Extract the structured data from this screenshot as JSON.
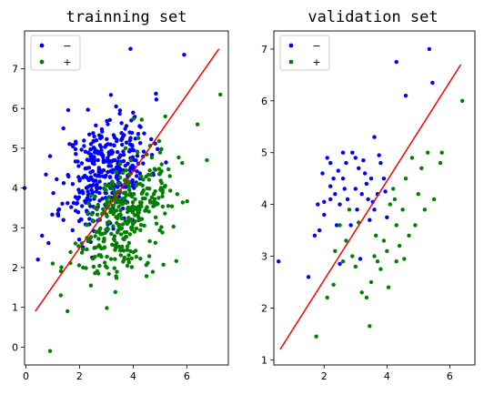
{
  "chart_data": [
    {
      "type": "scatter",
      "title": "trainning set",
      "xlim": [
        -0.05,
        7.55
      ],
      "ylim": [
        -0.45,
        7.95
      ],
      "xticks": [
        0,
        2,
        4,
        6
      ],
      "yticks": [
        0,
        1,
        2,
        3,
        4,
        5,
        6,
        7
      ],
      "legend": {
        "placement": "top-left",
        "entries": [
          "−",
          "+"
        ]
      },
      "grid": false,
      "series": [
        {
          "name": "−",
          "color": "#0000ff",
          "cluster": {
            "count": 380,
            "seed": 11,
            "mean": [
              3.0,
              4.45
            ],
            "sd": [
              0.8,
              0.72
            ],
            "corr": 0.35
          },
          "points": [
            [
              3.9,
              7.5
            ],
            [
              5.9,
              7.35
            ],
            [
              0.9,
              4.8
            ],
            [
              -0.05,
              4.0
            ],
            [
              0.6,
              2.8
            ],
            [
              0.45,
              2.2
            ],
            [
              1.2,
              3.35
            ],
            [
              1.4,
              5.5
            ]
          ]
        },
        {
          "name": "+",
          "color": "#008000",
          "cluster": {
            "count": 360,
            "seed": 29,
            "mean": [
              3.6,
              3.25
            ],
            "sd": [
              0.85,
              0.75
            ],
            "corr": 0.4
          },
          "points": [
            [
              7.25,
              6.35
            ],
            [
              6.4,
              5.6
            ],
            [
              0.9,
              -0.1
            ],
            [
              1.55,
              0.9
            ],
            [
              1.3,
              1.3
            ],
            [
              6.75,
              4.7
            ],
            [
              1.0,
              2.1
            ],
            [
              5.2,
              5.8
            ]
          ]
        }
      ],
      "line": {
        "color": "#ff0000",
        "x": [
          0.35,
          7.2
        ],
        "y": [
          0.9,
          7.5
        ]
      }
    },
    {
      "type": "scatter",
      "title": "validation set",
      "xlim": [
        0.4,
        6.8
      ],
      "ylim": [
        0.9,
        7.35
      ],
      "xticks": [
        2,
        4,
        6
      ],
      "yticks": [
        1,
        2,
        3,
        4,
        5,
        6,
        7
      ],
      "legend": {
        "placement": "top-left",
        "entries": [
          "−",
          "+"
        ]
      },
      "grid": false,
      "series": [
        {
          "name": "−",
          "color": "#0000ff",
          "points": [
            [
              0.55,
              2.9
            ],
            [
              1.5,
              2.6
            ],
            [
              1.7,
              3.4
            ],
            [
              1.8,
              4.0
            ],
            [
              1.85,
              3.5
            ],
            [
              2.0,
              3.8
            ],
            [
              2.1,
              4.9
            ],
            [
              2.2,
              4.8
            ],
            [
              2.2,
              4.1
            ],
            [
              2.3,
              4.5
            ],
            [
              2.35,
              4.2
            ],
            [
              2.4,
              3.6
            ],
            [
              2.5,
              4.0
            ],
            [
              2.5,
              2.85
            ],
            [
              2.6,
              5.0
            ],
            [
              2.6,
              4.5
            ],
            [
              2.7,
              4.8
            ],
            [
              2.75,
              4.1
            ],
            [
              2.9,
              5.0
            ],
            [
              3.0,
              4.9
            ],
            [
              3.0,
              4.3
            ],
            [
              3.05,
              3.9
            ],
            [
              3.1,
              4.7
            ],
            [
              3.2,
              4.2
            ],
            [
              3.3,
              4.6
            ],
            [
              3.35,
              4.4
            ],
            [
              3.4,
              4.1
            ],
            [
              3.45,
              3.7
            ],
            [
              3.5,
              4.5
            ],
            [
              3.55,
              4.05
            ],
            [
              3.6,
              5.3
            ],
            [
              3.6,
              3.9
            ],
            [
              3.7,
              4.2
            ],
            [
              3.8,
              4.8
            ],
            [
              3.9,
              4.5
            ],
            [
              4.0,
              3.75
            ],
            [
              4.3,
              6.75
            ],
            [
              4.6,
              6.1
            ],
            [
              5.35,
              7.0
            ],
            [
              5.45,
              6.35
            ],
            [
              2.2,
              4.35
            ],
            [
              3.15,
              2.95
            ],
            [
              2.0,
              4.05
            ],
            [
              2.85,
              3.6
            ],
            [
              1.95,
              4.6
            ],
            [
              2.65,
              4.3
            ],
            [
              3.25,
              4.85
            ],
            [
              3.95,
              4.25
            ],
            [
              2.45,
              4.65
            ],
            [
              3.75,
              4.95
            ]
          ]
        },
        {
          "name": "+",
          "color": "#008000",
          "points": [
            [
              1.75,
              1.45
            ],
            [
              2.1,
              2.2
            ],
            [
              2.3,
              2.45
            ],
            [
              2.35,
              3.1
            ],
            [
              2.5,
              3.6
            ],
            [
              2.6,
              2.9
            ],
            [
              2.7,
              3.3
            ],
            [
              2.8,
              3.9
            ],
            [
              2.9,
              3.0
            ],
            [
              3.0,
              2.8
            ],
            [
              3.1,
              3.65
            ],
            [
              3.2,
              2.3
            ],
            [
              3.35,
              2.2
            ],
            [
              3.45,
              1.65
            ],
            [
              3.5,
              2.5
            ],
            [
              3.6,
              3.0
            ],
            [
              3.7,
              2.9
            ],
            [
              3.8,
              2.75
            ],
            [
              3.9,
              3.3
            ],
            [
              4.0,
              3.1
            ],
            [
              4.05,
              2.4
            ],
            [
              4.1,
              4.0
            ],
            [
              4.2,
              4.3
            ],
            [
              4.3,
              3.6
            ],
            [
              4.3,
              2.9
            ],
            [
              4.4,
              3.2
            ],
            [
              4.5,
              3.9
            ],
            [
              4.6,
              4.5
            ],
            [
              4.7,
              3.4
            ],
            [
              4.8,
              4.9
            ],
            [
              4.9,
              3.6
            ],
            [
              5.0,
              4.2
            ],
            [
              5.1,
              4.7
            ],
            [
              5.3,
              5.0
            ],
            [
              5.5,
              4.1
            ],
            [
              5.7,
              4.8
            ],
            [
              5.75,
              5.0
            ],
            [
              6.4,
              6.0
            ],
            [
              4.25,
              4.1
            ],
            [
              3.65,
              3.4
            ],
            [
              4.55,
              2.95
            ],
            [
              5.2,
              3.9
            ]
          ]
        }
      ],
      "line": {
        "color": "#ff0000",
        "x": [
          0.6,
          6.35
        ],
        "y": [
          1.2,
          6.7
        ]
      }
    }
  ]
}
